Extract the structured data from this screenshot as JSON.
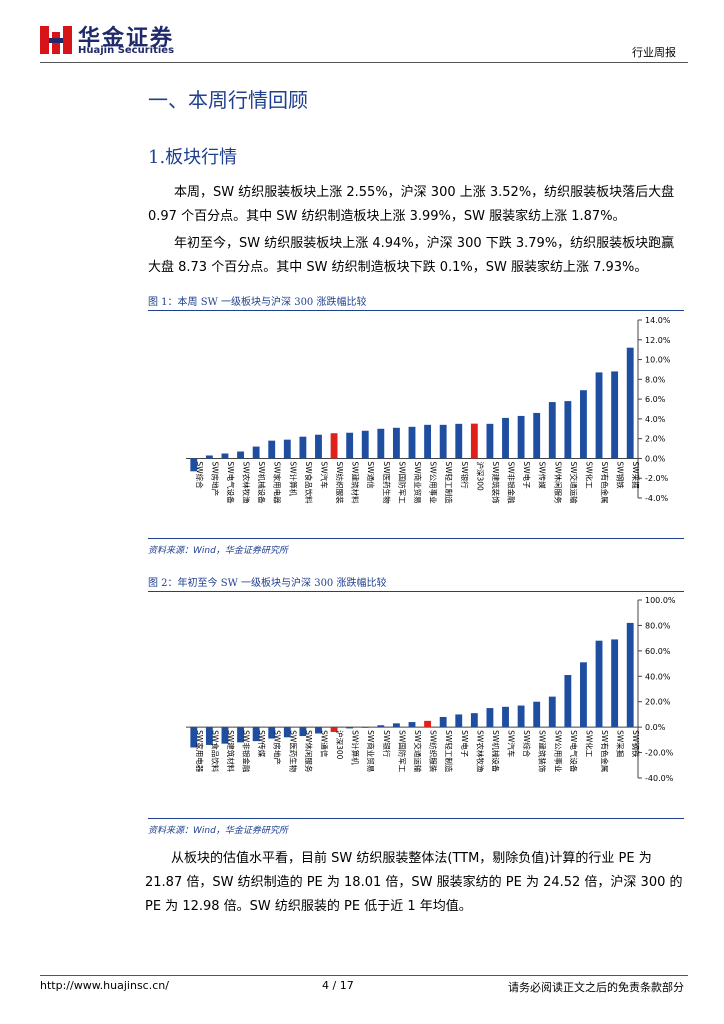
{
  "header": {
    "brand": "华金证券",
    "brand_en": "Huajin Securities",
    "doc_type": "行业周报"
  },
  "section_title": "一、本周行情回顾",
  "subsection_title": "1.板块行情",
  "paragraphs": [
    "本周，SW 纺织服装板块上涨 2.55%，沪深 300 上涨 3.52%，纺织服装板块落后大盘 0.97 个百分点。其中 SW 纺织制造板块上涨 3.99%，SW 服装家纺上涨 1.87%。",
    "年初至今，SW 纺织服装板块上涨 4.94%，沪深 300 下跌 3.79%，纺织服装板块跑赢大盘 8.73 个百分点。其中 SW 纺织制造板块下跌 0.1%，SW 服装家纺上涨 7.93%。"
  ],
  "closing_paragraph": "从板块的估值水平看，目前 SW 纺织服装整体法(TTM，剔除负值)计算的行业 PE 为 21.87 倍，SW 纺织制造的 PE 为 18.01 倍，SW 服装家纺的 PE 为 24.52 倍，沪深 300 的 PE 为 12.98 倍。SW 纺织服装的 PE 低于近 1 年均值。",
  "chart_data": [
    {
      "type": "bar",
      "title": "图 1：本周 SW 一级板块与沪深 300 涨跌幅比较",
      "source": "资料来源：Wind，华金证券研究所",
      "categories": [
        "SW综合",
        "SW房地产",
        "SW电气设备",
        "SW农林牧渔",
        "SW机械设备",
        "SW家用电器",
        "SW计算机",
        "SW食品饮料",
        "SW汽车",
        "SW纺织服装",
        "SW建筑材料",
        "SW通信",
        "SW医药生物",
        "SW国防军工",
        "SW商业贸易",
        "SW公用事业",
        "SW轻工制造",
        "SW银行",
        "沪深300",
        "SW建筑装饰",
        "SW非银金融",
        "SW电子",
        "SW传媒",
        "SW休闲服务",
        "SW交通运输",
        "SW化工",
        "SW有色金属",
        "SW钢铁",
        "SW采掘"
      ],
      "values": [
        -1.3,
        0.3,
        0.5,
        0.7,
        1.2,
        1.8,
        1.9,
        2.2,
        2.4,
        2.55,
        2.6,
        2.8,
        3.0,
        3.1,
        3.2,
        3.4,
        3.4,
        3.5,
        3.52,
        3.5,
        4.1,
        4.3,
        4.6,
        5.7,
        5.8,
        6.9,
        8.7,
        8.8,
        11.2
      ],
      "colors": [
        "#1f4ea0",
        "#1f4ea0",
        "#1f4ea0",
        "#1f4ea0",
        "#1f4ea0",
        "#1f4ea0",
        "#1f4ea0",
        "#1f4ea0",
        "#1f4ea0",
        "#e0201b",
        "#1f4ea0",
        "#1f4ea0",
        "#1f4ea0",
        "#1f4ea0",
        "#1f4ea0",
        "#1f4ea0",
        "#1f4ea0",
        "#1f4ea0",
        "#e0201b",
        "#1f4ea0",
        "#1f4ea0",
        "#1f4ea0",
        "#1f4ea0",
        "#1f4ea0",
        "#1f4ea0",
        "#1f4ea0",
        "#1f4ea0",
        "#1f4ea0",
        "#1f4ea0"
      ],
      "ylim": [
        -4,
        14
      ],
      "yticks": [
        {
          "value": -4,
          "label": "-4.0%"
        },
        {
          "value": -2,
          "label": "-2.0%"
        },
        {
          "value": 0,
          "label": "0.0%"
        },
        {
          "value": 2,
          "label": "2.0%"
        },
        {
          "value": 4,
          "label": "4.0%"
        },
        {
          "value": 6,
          "label": "6.0%"
        },
        {
          "value": 8,
          "label": "8.0%"
        },
        {
          "value": 10,
          "label": "10.0%"
        },
        {
          "value": 12,
          "label": "12.0%"
        },
        {
          "value": 14,
          "label": "14.0%"
        }
      ]
    },
    {
      "type": "bar",
      "title": "图 2：年初至今 SW 一级板块与沪深 300 涨跌幅比较",
      "source": "资料来源：Wind，华金证券研究所",
      "categories": [
        "SW家用电器",
        "SW食品饮料",
        "SW建筑材料",
        "SW非银金融",
        "SW传媒",
        "SW房地产",
        "SW医药生物",
        "SW休闲服务",
        "SW通信",
        "沪深300",
        "SW计算机",
        "SW商业贸易",
        "SW银行",
        "SW国防军工",
        "SW交通运输",
        "SW纺织服装",
        "SW轻工制造",
        "SW电子",
        "SW农林牧渔",
        "SW机械设备",
        "SW汽车",
        "SW综合",
        "SW建筑装饰",
        "SW公用事业",
        "SW电气设备",
        "SW化工",
        "SW有色金属",
        "SW采掘",
        "SW钢铁"
      ],
      "values": [
        -16,
        -14,
        -13,
        -12,
        -11,
        -9,
        -8,
        -7,
        -5,
        -3.79,
        -1,
        -0.5,
        1.5,
        3,
        4,
        4.94,
        8,
        10,
        11,
        15,
        16,
        17,
        20,
        24,
        41,
        51,
        68,
        69,
        82
      ],
      "colors": [
        "#1f4ea0",
        "#1f4ea0",
        "#1f4ea0",
        "#1f4ea0",
        "#1f4ea0",
        "#1f4ea0",
        "#1f4ea0",
        "#1f4ea0",
        "#1f4ea0",
        "#e0201b",
        "#1f4ea0",
        "#1f4ea0",
        "#1f4ea0",
        "#1f4ea0",
        "#1f4ea0",
        "#e0201b",
        "#1f4ea0",
        "#1f4ea0",
        "#1f4ea0",
        "#1f4ea0",
        "#1f4ea0",
        "#1f4ea0",
        "#1f4ea0",
        "#1f4ea0",
        "#1f4ea0",
        "#1f4ea0",
        "#1f4ea0",
        "#1f4ea0",
        "#1f4ea0"
      ],
      "ylim": [
        -40,
        100
      ],
      "yticks": [
        {
          "value": -40,
          "label": "-40.0%"
        },
        {
          "value": -20,
          "label": "-20.0%"
        },
        {
          "value": 0,
          "label": "0.0%"
        },
        {
          "value": 20,
          "label": "20.0%"
        },
        {
          "value": 40,
          "label": "40.0%"
        },
        {
          "value": 60,
          "label": "60.0%"
        },
        {
          "value": 80,
          "label": "80.0%"
        },
        {
          "value": 100,
          "label": "100.0%"
        }
      ]
    }
  ],
  "footer": {
    "url": "http://www.huajinsc.cn/",
    "page": "4 / 17",
    "disclaimer": "请务必阅读正文之后的免责条款部分"
  }
}
